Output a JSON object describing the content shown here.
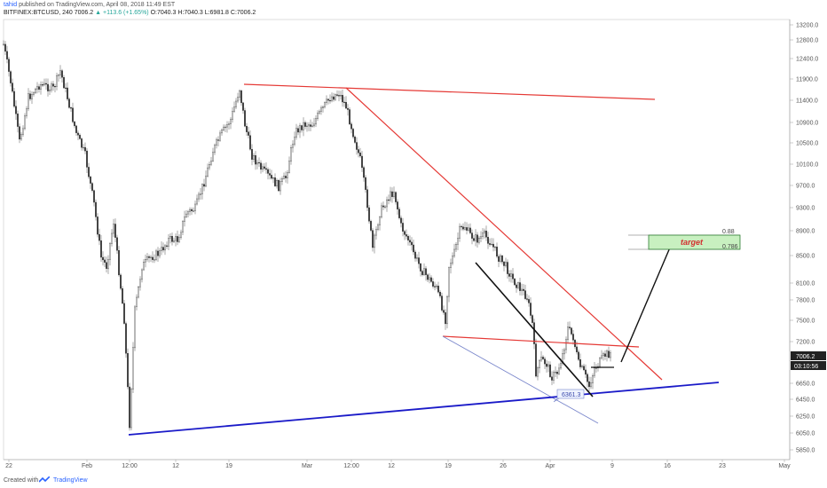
{
  "header": {
    "author": "tahid",
    "published_text": "published on TradingView.com, April 08, 2018 11:49 EST",
    "symbol": "BITFINEX:BTCUSD, 240",
    "last": "7006.2",
    "change": "▲ +113.6 (+1.65%)",
    "ohlc": "O:7040.3  H:7040.3  L:6981.8  C:7006.2"
  },
  "footer": {
    "created_with": "Created with",
    "brand": "TradingView"
  },
  "colors": {
    "red_line": "#e53935",
    "blue_line": "#1a1ac8",
    "light_blue": "#7986cb",
    "target_fill": "#c8f0c0",
    "target_border": "#2e7d32",
    "target_text": "#d32f2f",
    "price_badge": "#222222"
  },
  "chart_data": {
    "type": "candlestick",
    "y_ticks": [
      "13200.0",
      "12800.0",
      "12400.0",
      "11900.0",
      "11400.0",
      "10900.0",
      "10500.0",
      "10100.0",
      "9700.0",
      "9300.0",
      "8900.0",
      "8500.0",
      "8100.0",
      "7800.0",
      "7500.0",
      "7200.0",
      "6650.0",
      "6450.0",
      "6250.0",
      "6050.0",
      "5850.0"
    ],
    "x_ticks": [
      "22",
      "Feb",
      "12:00",
      "12",
      "19",
      "Mar",
      "12:00",
      "12",
      "19",
      "26",
      "Apr",
      "9",
      "16",
      "23",
      "May"
    ],
    "current_price": "7006.2",
    "countdown": "03:10:56",
    "annotations": {
      "target_label": "target",
      "fib_upper": "0.88",
      "fib_lower": "0.786",
      "low_label": "6361.3"
    }
  }
}
